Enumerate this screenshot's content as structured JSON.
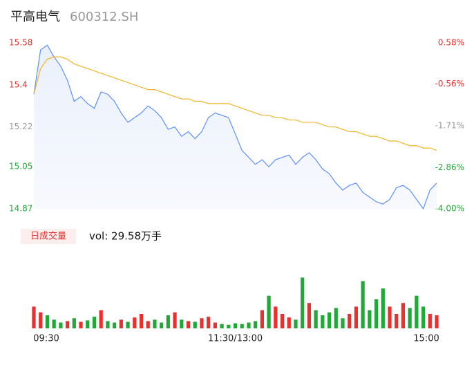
{
  "chart_data": [
    {
      "type": "line",
      "title": "平高电气",
      "subtitle": "600312.SH",
      "xlim": [
        0,
        240
      ],
      "x": [
        0,
        4,
        8,
        12,
        16,
        20,
        24,
        28,
        32,
        36,
        40,
        44,
        48,
        52,
        56,
        60,
        64,
        68,
        72,
        76,
        80,
        84,
        88,
        92,
        96,
        100,
        104,
        108,
        112,
        116,
        120,
        124,
        128,
        132,
        136,
        140,
        144,
        148,
        152,
        156,
        160,
        164,
        168,
        172,
        176,
        180,
        184,
        188,
        192,
        196,
        200,
        204,
        208,
        212,
        216,
        220,
        224,
        228,
        232,
        236,
        240
      ],
      "ylim": [
        14.87,
        15.58
      ],
      "yticks": [
        15.58,
        15.4,
        15.22,
        15.05,
        14.87
      ],
      "ytick_colors": [
        "#e8312f",
        "#e8312f",
        "#999999",
        "#22a838",
        "#22a838"
      ],
      "y2lim": [
        -4.0,
        0.58
      ],
      "y2ticks": [
        {
          "value": 0.58,
          "label": "0.58%"
        },
        {
          "value": -0.56,
          "label": "-0.56%"
        },
        {
          "value": -1.71,
          "label": "-1.71%"
        },
        {
          "value": -2.86,
          "label": "-2.86%"
        },
        {
          "value": -4.0,
          "label": "-4.00%"
        }
      ],
      "series": [
        {
          "name": "price",
          "color": "#5b8ff9",
          "values": [
            15.36,
            15.55,
            15.57,
            15.52,
            15.48,
            15.42,
            15.33,
            15.35,
            15.32,
            15.3,
            15.37,
            15.36,
            15.33,
            15.28,
            15.24,
            15.26,
            15.28,
            15.31,
            15.29,
            15.26,
            15.21,
            15.22,
            15.18,
            15.2,
            15.17,
            15.2,
            15.26,
            15.28,
            15.27,
            15.26,
            15.19,
            15.12,
            15.09,
            15.06,
            15.08,
            15.05,
            15.08,
            15.09,
            15.1,
            15.06,
            15.09,
            15.11,
            15.08,
            15.04,
            15.02,
            14.98,
            14.95,
            14.97,
            14.98,
            14.94,
            14.92,
            14.9,
            14.89,
            14.91,
            14.96,
            14.97,
            14.95,
            14.91,
            14.87,
            14.95,
            14.98
          ]
        },
        {
          "name": "average",
          "color": "#f0b429",
          "values": [
            15.36,
            15.47,
            15.51,
            15.52,
            15.52,
            15.51,
            15.49,
            15.48,
            15.47,
            15.46,
            15.45,
            15.44,
            15.43,
            15.42,
            15.41,
            15.4,
            15.39,
            15.38,
            15.38,
            15.37,
            15.36,
            15.35,
            15.34,
            15.34,
            15.33,
            15.33,
            15.32,
            15.32,
            15.32,
            15.32,
            15.31,
            15.3,
            15.29,
            15.28,
            15.27,
            15.27,
            15.26,
            15.26,
            15.25,
            15.25,
            15.24,
            15.24,
            15.24,
            15.23,
            15.22,
            15.22,
            15.21,
            15.2,
            15.2,
            15.19,
            15.18,
            15.18,
            15.17,
            15.16,
            15.16,
            15.15,
            15.14,
            15.14,
            15.13,
            15.13,
            15.12
          ]
        }
      ]
    },
    {
      "type": "bar",
      "label": "日成交量",
      "annotation": "vol: 29.58万手",
      "xlim": [
        0,
        240
      ],
      "xticks": [
        {
          "value": 0,
          "label": "09:30"
        },
        {
          "value": 120,
          "label": "11:30/13:00"
        },
        {
          "value": 240,
          "label": "15:00"
        }
      ],
      "x": [
        0,
        4,
        8,
        12,
        16,
        20,
        24,
        28,
        32,
        36,
        40,
        44,
        48,
        52,
        56,
        60,
        64,
        68,
        72,
        76,
        80,
        84,
        88,
        92,
        96,
        100,
        104,
        108,
        112,
        116,
        120,
        124,
        128,
        132,
        136,
        140,
        144,
        148,
        152,
        156,
        160,
        164,
        168,
        172,
        176,
        180,
        184,
        188,
        192,
        196,
        200,
        204,
        208,
        212,
        216,
        220,
        224,
        228,
        232,
        236,
        240
      ],
      "ylim": [
        0,
        100
      ],
      "values": [
        30,
        22,
        18,
        12,
        8,
        10,
        14,
        9,
        11,
        16,
        25,
        10,
        8,
        12,
        9,
        15,
        20,
        10,
        12,
        8,
        18,
        22,
        12,
        10,
        9,
        14,
        16,
        8,
        6,
        5,
        7,
        6,
        8,
        10,
        25,
        45,
        30,
        20,
        15,
        12,
        70,
        35,
        25,
        18,
        22,
        28,
        14,
        20,
        30,
        65,
        25,
        40,
        55,
        30,
        20,
        35,
        28,
        45,
        30,
        20,
        18
      ],
      "colors": [
        "#e8312f",
        "#e8312f",
        "#22a838",
        "#22a838",
        "#22a838",
        "#e8312f",
        "#22a838",
        "#e8312f",
        "#22a838",
        "#22a838",
        "#e8312f",
        "#22a838",
        "#22a838",
        "#e8312f",
        "#22a838",
        "#e8312f",
        "#e8312f",
        "#e8312f",
        "#22a838",
        "#22a838",
        "#22a838",
        "#e8312f",
        "#22a838",
        "#e8312f",
        "#22a838",
        "#e8312f",
        "#e8312f",
        "#e8312f",
        "#22a838",
        "#22a838",
        "#22a838",
        "#22a838",
        "#22a838",
        "#22a838",
        "#e8312f",
        "#22a838",
        "#e8312f",
        "#e8312f",
        "#e8312f",
        "#22a838",
        "#22a838",
        "#e8312f",
        "#22a838",
        "#22a838",
        "#22a838",
        "#22a838",
        "#22a838",
        "#e8312f",
        "#e8312f",
        "#22a838",
        "#22a838",
        "#22a838",
        "#22a838",
        "#e8312f",
        "#e8312f",
        "#e8312f",
        "#22a838",
        "#22a838",
        "#22a838",
        "#e8312f",
        "#e8312f"
      ]
    }
  ]
}
